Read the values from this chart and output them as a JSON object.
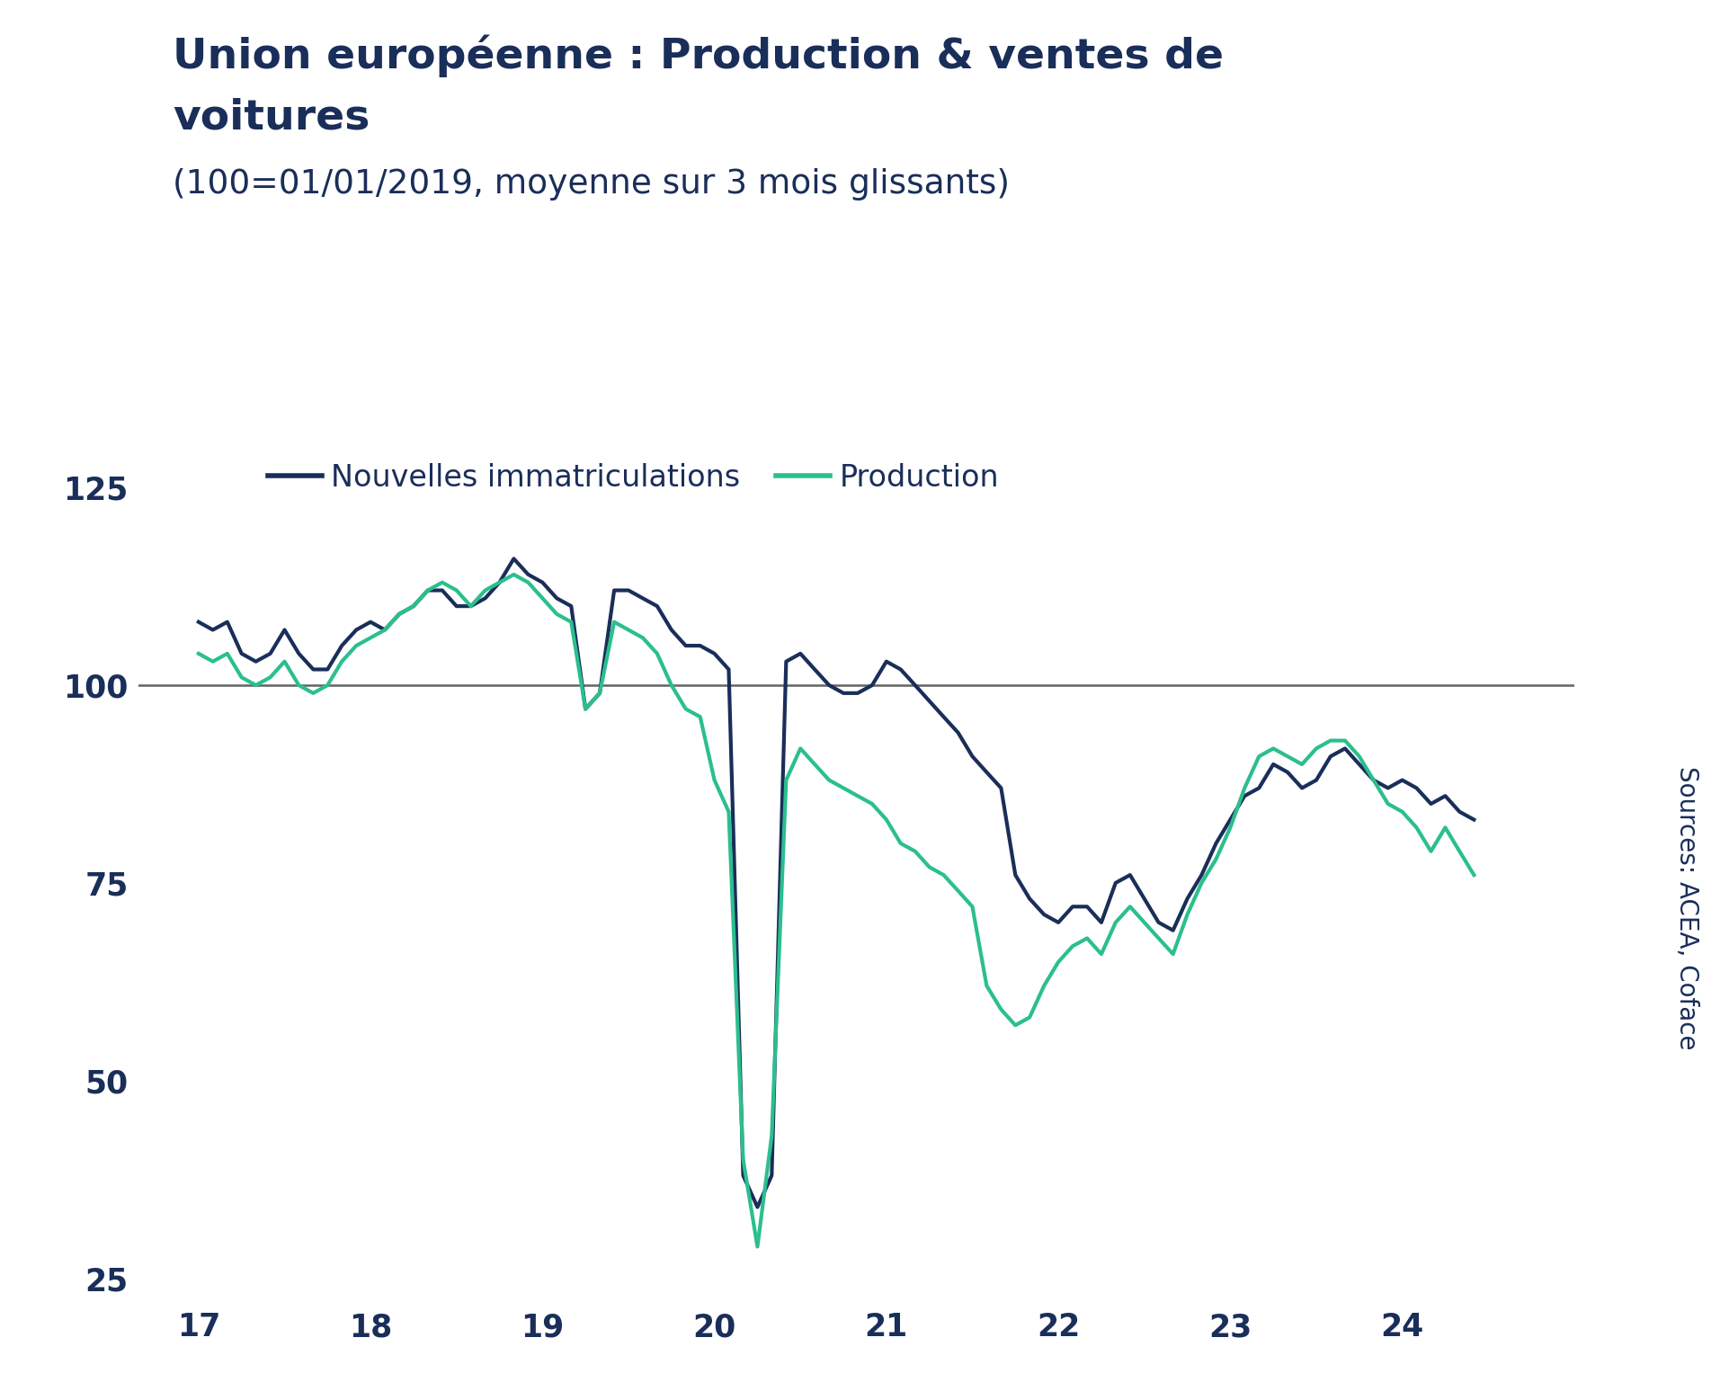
{
  "title_line1": "Union européenne : Production & ventes de",
  "title_line2": "voitures",
  "subtitle": "(100=01/01/2019, moyenne sur 3 mois glissants)",
  "legend_label1": "Nouvelles immatriculations",
  "legend_label2": "Production",
  "source_text": "Sources: ACEA, Coface",
  "color1": "#1a2e5a",
  "color2": "#2bbf8e",
  "color_hline": "#636363",
  "title_color": "#1a2e5a",
  "subtitle_color": "#1a2e5a",
  "background_color": "#ffffff",
  "xlim": [
    16.65,
    25.0
  ],
  "ylim": [
    22,
    130
  ],
  "yticks": [
    25,
    50,
    75,
    100,
    125
  ],
  "xticks": [
    17,
    18,
    19,
    20,
    21,
    22,
    23,
    24
  ],
  "linewidth": 3.0,
  "hline_y": 100,
  "nouvelles_immat_x": [
    17.0,
    17.083,
    17.167,
    17.25,
    17.333,
    17.417,
    17.5,
    17.583,
    17.667,
    17.75,
    17.833,
    17.917,
    18.0,
    18.083,
    18.167,
    18.25,
    18.333,
    18.417,
    18.5,
    18.583,
    18.667,
    18.75,
    18.833,
    18.917,
    19.0,
    19.083,
    19.167,
    19.25,
    19.333,
    19.417,
    19.5,
    19.583,
    19.667,
    19.75,
    19.833,
    19.917,
    20.0,
    20.083,
    20.167,
    20.25,
    20.333,
    20.417,
    20.5,
    20.583,
    20.667,
    20.75,
    20.833,
    20.917,
    21.0,
    21.083,
    21.167,
    21.25,
    21.333,
    21.417,
    21.5,
    21.583,
    21.667,
    21.75,
    21.833,
    21.917,
    22.0,
    22.083,
    22.167,
    22.25,
    22.333,
    22.417,
    22.5,
    22.583,
    22.667,
    22.75,
    22.833,
    22.917,
    23.0,
    23.083,
    23.167,
    23.25,
    23.333,
    23.417,
    23.5,
    23.583,
    23.667,
    23.75,
    23.833,
    23.917,
    24.0,
    24.083,
    24.167,
    24.25,
    24.333,
    24.417
  ],
  "nouvelles_immat_y": [
    108,
    107,
    108,
    104,
    103,
    104,
    107,
    104,
    102,
    102,
    105,
    107,
    108,
    107,
    109,
    110,
    112,
    112,
    110,
    110,
    111,
    113,
    116,
    114,
    113,
    111,
    110,
    97,
    99,
    112,
    112,
    111,
    110,
    107,
    105,
    105,
    104,
    102,
    38,
    34,
    38,
    103,
    104,
    102,
    100,
    99,
    99,
    100,
    103,
    102,
    100,
    98,
    96,
    94,
    91,
    89,
    87,
    76,
    73,
    71,
    70,
    72,
    72,
    70,
    75,
    76,
    73,
    70,
    69,
    73,
    76,
    80,
    83,
    86,
    87,
    90,
    89,
    87,
    88,
    91,
    92,
    90,
    88,
    87,
    88,
    87,
    85,
    86,
    84,
    83
  ],
  "production_x": [
    17.0,
    17.083,
    17.167,
    17.25,
    17.333,
    17.417,
    17.5,
    17.583,
    17.667,
    17.75,
    17.833,
    17.917,
    18.0,
    18.083,
    18.167,
    18.25,
    18.333,
    18.417,
    18.5,
    18.583,
    18.667,
    18.75,
    18.833,
    18.917,
    19.0,
    19.083,
    19.167,
    19.25,
    19.333,
    19.417,
    19.5,
    19.583,
    19.667,
    19.75,
    19.833,
    19.917,
    20.0,
    20.083,
    20.167,
    20.25,
    20.333,
    20.417,
    20.5,
    20.583,
    20.667,
    20.75,
    20.833,
    20.917,
    21.0,
    21.083,
    21.167,
    21.25,
    21.333,
    21.417,
    21.5,
    21.583,
    21.667,
    21.75,
    21.833,
    21.917,
    22.0,
    22.083,
    22.167,
    22.25,
    22.333,
    22.417,
    22.5,
    22.583,
    22.667,
    22.75,
    22.833,
    22.917,
    23.0,
    23.083,
    23.167,
    23.25,
    23.333,
    23.417,
    23.5,
    23.583,
    23.667,
    23.75,
    23.833,
    23.917,
    24.0,
    24.083,
    24.167,
    24.25,
    24.333,
    24.417
  ],
  "production_y": [
    104,
    103,
    104,
    101,
    100,
    101,
    103,
    100,
    99,
    100,
    103,
    105,
    106,
    107,
    109,
    110,
    112,
    113,
    112,
    110,
    112,
    113,
    114,
    113,
    111,
    109,
    108,
    97,
    99,
    108,
    107,
    106,
    104,
    100,
    97,
    96,
    88,
    84,
    40,
    29,
    43,
    88,
    92,
    90,
    88,
    87,
    86,
    85,
    83,
    80,
    79,
    77,
    76,
    74,
    72,
    62,
    59,
    57,
    58,
    62,
    65,
    67,
    68,
    66,
    70,
    72,
    70,
    68,
    66,
    71,
    75,
    78,
    82,
    87,
    91,
    92,
    91,
    90,
    92,
    93,
    93,
    91,
    88,
    85,
    84,
    82,
    79,
    82,
    79,
    76
  ]
}
